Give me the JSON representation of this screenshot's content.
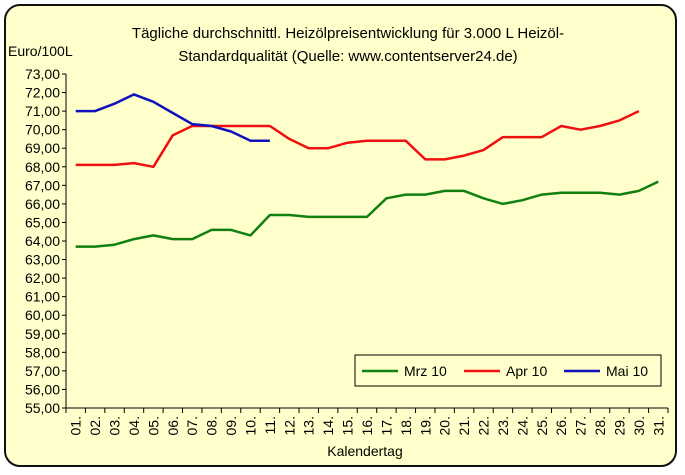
{
  "chart_data": {
    "type": "line",
    "title": [
      "Tägliche durchschnittl. Heizölpreisentwicklung für 3.000 L Heizöl-",
      "Standardqualität (Quelle: www.contentserver24.de)"
    ],
    "ylabel": "Euro/100L",
    "xlabel": "Kalendertag",
    "ylim": [
      55,
      73
    ],
    "ytick_step": 1,
    "ytick_labels": [
      "55,00",
      "56,00",
      "57,00",
      "58,00",
      "59,00",
      "60,00",
      "61,00",
      "62,00",
      "63,00",
      "64,00",
      "65,00",
      "66,00",
      "67,00",
      "68,00",
      "69,00",
      "70,00",
      "71,00",
      "72,00",
      "73,00"
    ],
    "categories": [
      "01.",
      "02.",
      "03.",
      "04.",
      "05.",
      "06.",
      "07.",
      "08.",
      "09.",
      "10.",
      "11.",
      "12.",
      "13.",
      "14.",
      "15.",
      "16.",
      "17.",
      "18.",
      "19.",
      "20.",
      "21.",
      "22.",
      "23.",
      "24.",
      "25.",
      "26.",
      "27.",
      "28.",
      "29.",
      "30.",
      "31."
    ],
    "grid": false,
    "legend": "bottom-right",
    "series": [
      {
        "name": "Mrz 10",
        "color": "#118011",
        "values": [
          63.7,
          63.7,
          63.8,
          64.1,
          64.3,
          64.1,
          64.1,
          64.6,
          64.6,
          64.3,
          65.4,
          65.4,
          65.3,
          65.3,
          65.3,
          65.3,
          66.3,
          66.5,
          66.5,
          66.7,
          66.7,
          66.3,
          66.0,
          66.2,
          66.5,
          66.6,
          66.6,
          66.6,
          66.5,
          66.7,
          67.2
        ]
      },
      {
        "name": "Apr 10",
        "color": "#ee1111",
        "values": [
          68.1,
          68.1,
          68.1,
          68.2,
          68.0,
          69.7,
          70.2,
          70.2,
          70.2,
          70.2,
          70.2,
          69.5,
          69.0,
          69.0,
          69.3,
          69.4,
          69.4,
          69.4,
          68.4,
          68.4,
          68.6,
          68.9,
          69.6,
          69.6,
          69.6,
          70.2,
          70.0,
          70.2,
          70.5,
          71.0,
          null
        ]
      },
      {
        "name": "Mai 10",
        "color": "#1111bb",
        "values": [
          71.0,
          71.0,
          71.4,
          71.9,
          71.5,
          70.9,
          70.3,
          70.2,
          69.9,
          69.4,
          69.4,
          null,
          null,
          null,
          null,
          null,
          null,
          null,
          null,
          null,
          null,
          null,
          null,
          null,
          null,
          null,
          null,
          null,
          null,
          null,
          null
        ]
      }
    ]
  }
}
